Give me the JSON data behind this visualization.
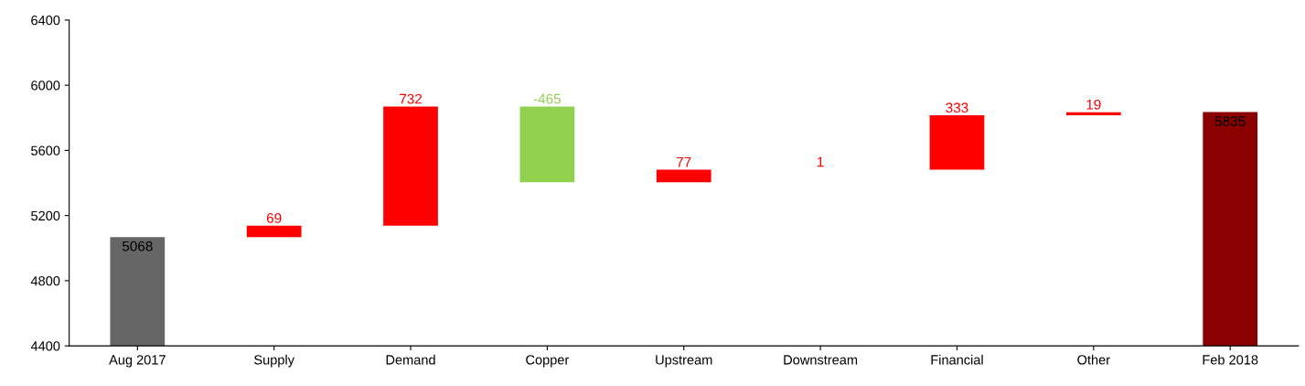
{
  "chart_data": {
    "type": "bar",
    "categories": [
      "Aug 2017",
      "Supply",
      "Demand",
      "Copper",
      "Upstream",
      "Downstream",
      "Financial",
      "Other",
      "Feb 2018"
    ],
    "values": [
      5068,
      69,
      732,
      -465,
      77,
      1,
      333,
      19,
      5835
    ],
    "base": [
      null,
      5068,
      5137,
      5869,
      5404,
      5481,
      5482,
      5815,
      null
    ],
    "colors": [
      "#666666",
      "#ff0000",
      "#ff0000",
      "#92d050",
      "#ff0000",
      "#ff0000",
      "#ff0000",
      "#ff0000",
      "#8b0000"
    ],
    "ylim": [
      4400,
      6400
    ],
    "yticks": [
      4400,
      4800,
      5200,
      5600,
      6000,
      6400
    ],
    "data_labels": true,
    "grid": false,
    "legend": false
  }
}
